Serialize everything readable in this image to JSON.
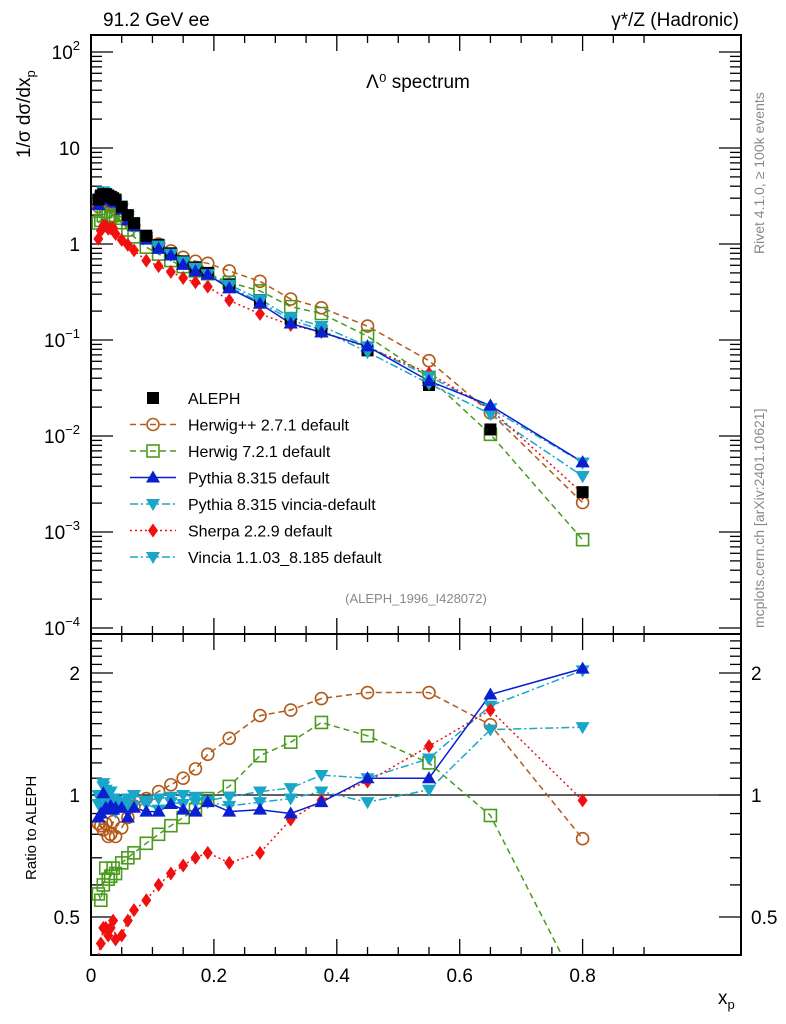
{
  "header": {
    "left": "91.2 GeV ee",
    "right": "γ*/Z (Hadronic)"
  },
  "side_labels": {
    "rivet": "Rivet 4.1.0, ≥ 100k events",
    "mcplots": "mcplots.cern.ch [arXiv:2401.10621]"
  },
  "chart_data": [
    {
      "type": "scatter",
      "title": "Λ⁰ spectrum",
      "xlabel": "x_p",
      "ylabel": "1/σ dσ/dx_p",
      "yscale": "log",
      "ylim": [
        0.0001,
        150
      ],
      "xlim": [
        0,
        0.92
      ],
      "ytick_labels": [
        "10^2",
        "10",
        "1",
        "10^-1",
        "10^-2",
        "10^-3",
        "10^-4"
      ],
      "annotation": "(ALEPH_1996_I428072)",
      "legend_position": "bottom-left",
      "x": [
        0.012,
        0.016,
        0.02,
        0.024,
        0.028,
        0.032,
        0.036,
        0.04,
        0.05,
        0.06,
        0.07,
        0.09,
        0.11,
        0.13,
        0.15,
        0.17,
        0.19,
        0.225,
        0.275,
        0.325,
        0.375,
        0.45,
        0.55,
        0.65,
        0.8
      ],
      "series": [
        {
          "name": "ALEPH",
          "key": "aleph",
          "color": "#000000",
          "marker": "square-filled",
          "line": "none",
          "values": [
            2.9,
            3.2,
            3.3,
            3.3,
            3.2,
            3.1,
            3.0,
            2.9,
            2.45,
            2.0,
            1.65,
            1.22,
            0.98,
            0.8,
            0.66,
            0.57,
            0.5,
            0.38,
            0.26,
            0.165,
            0.125,
            0.078,
            0.034,
            0.0117,
            0.0026
          ]
        },
        {
          "name": "Herwig++ 2.7.1 default",
          "key": "herwigpp",
          "color": "#b35a1a",
          "marker": "circle-open",
          "line": "dashed",
          "ratio": [
            0.85,
            0.84,
            0.82,
            0.85,
            0.79,
            0.8,
            0.86,
            0.79,
            0.83,
            0.88,
            0.94,
            0.98,
            1.02,
            1.06,
            1.1,
            1.16,
            1.26,
            1.38,
            1.57,
            1.62,
            1.73,
            1.79,
            1.79,
            1.49,
            0.78
          ]
        },
        {
          "name": "Herwig 7.2.1 default",
          "key": "herwig7",
          "color": "#4a9a1e",
          "marker": "square-open",
          "line": "dashed",
          "ratio": [
            0.57,
            0.55,
            0.6,
            0.66,
            0.62,
            0.63,
            0.66,
            0.64,
            0.68,
            0.7,
            0.72,
            0.76,
            0.8,
            0.84,
            0.88,
            0.92,
            0.98,
            1.05,
            1.25,
            1.35,
            1.51,
            1.4,
            1.2,
            0.89,
            0.32
          ]
        },
        {
          "name": "Pythia 8.315 default",
          "key": "pythia",
          "color": "#0a1fd0",
          "marker": "triangle-up",
          "line": "solid",
          "ratio": [
            0.88,
            0.9,
            1.01,
            0.93,
            0.92,
            0.94,
            0.92,
            0.93,
            0.93,
            0.88,
            0.93,
            0.91,
            0.91,
            0.95,
            0.92,
            0.91,
            0.96,
            0.91,
            0.92,
            0.9,
            0.96,
            1.1,
            1.1,
            1.77,
            2.05
          ]
        },
        {
          "name": "Pythia 8.315 vincia-default",
          "key": "pythia_vincia",
          "color": "#1aa6c8",
          "marker": "triangle-down",
          "line": "dashdot",
          "ratio": [
            0.95,
            0.97,
            1.05,
            1.03,
            0.96,
            1.02,
            0.98,
            0.97,
            0.96,
            0.98,
            1.0,
            0.97,
            0.98,
            0.99,
            1.0,
            0.99,
            0.97,
            0.99,
            1.02,
            1.04,
            1.12,
            1.1,
            1.23,
            1.66,
            2.03
          ]
        },
        {
          "name": "Sherpa 2.2.9 default",
          "key": "sherpa",
          "color": "#f01010",
          "marker": "diamond",
          "line": "dotted",
          "ratio": [
            0.39,
            0.43,
            0.47,
            0.47,
            0.45,
            0.47,
            0.49,
            0.44,
            0.45,
            0.49,
            0.52,
            0.55,
            0.6,
            0.64,
            0.67,
            0.7,
            0.72,
            0.68,
            0.72,
            0.87,
            0.97,
            1.08,
            1.32,
            1.62,
            0.97
          ]
        },
        {
          "name": "Vincia 1.1.03_8.185 default",
          "key": "vincia",
          "color": "#1aa6c8",
          "marker": "triangle-down",
          "line": "dashdot",
          "ratio": [
            1.0,
            0.93,
            1.07,
            0.95,
            1.0,
            0.94,
            0.96,
            0.91,
            0.94,
            0.92,
            0.94,
            0.95,
            0.92,
            0.96,
            0.95,
            0.96,
            0.96,
            0.94,
            0.96,
            0.98,
            1.02,
            0.96,
            1.03,
            1.45,
            1.47
          ]
        }
      ]
    },
    {
      "type": "scatter",
      "title": "",
      "xlabel": "x_p",
      "ylabel": "Ratio to ALEPH",
      "yscale": "log",
      "ylim": [
        0.4,
        2.49
      ],
      "xlim": [
        0,
        0.92
      ],
      "xtick_labels": [
        "0",
        "0.2",
        "0.4",
        "0.6",
        "0.8"
      ],
      "ytick_labels": [
        "2",
        "1",
        "0.5"
      ],
      "reference_line": 1
    }
  ]
}
